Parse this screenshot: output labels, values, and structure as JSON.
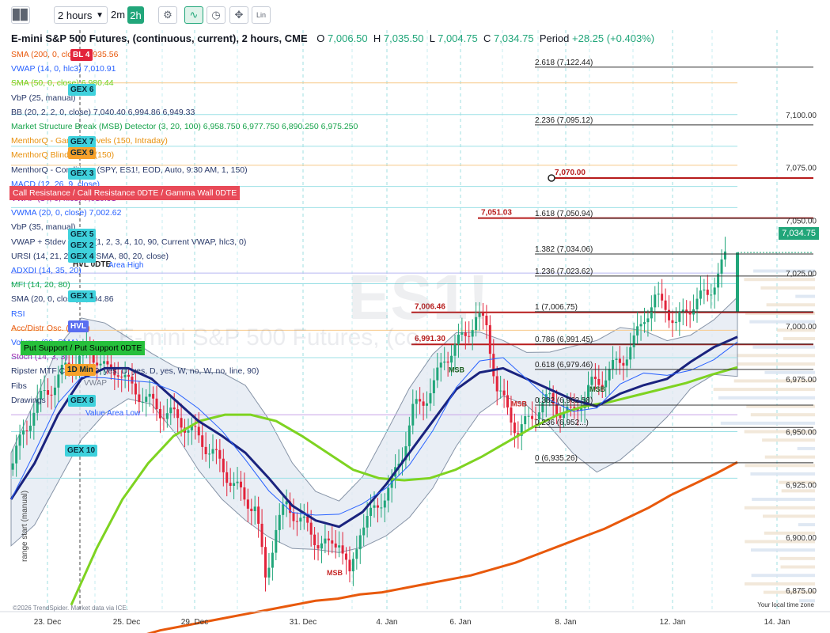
{
  "toolbar": {
    "interval": "2 hours",
    "btn_2m": "2m",
    "btn_2h": "2h",
    "lin": "Lin"
  },
  "header": {
    "title": "E-mini S&P 500 Futures, (continuous, current), 2 hours, CME",
    "o_label": "O",
    "o": "7,006.50",
    "h_label": "H",
    "h": "7,035.50",
    "l_label": "L",
    "l": "7,004.75",
    "c_label": "C",
    "c": "7,034.75",
    "period_label": "Period",
    "period": "+28.25 (+0.403%)"
  },
  "indicators": [
    {
      "text": "SMA (200, 0, close)  6,935.56",
      "color": "#e8590c"
    },
    {
      "text": "VWAP (14, 0, hlc3)  7,010.91",
      "color": "#2962ff"
    },
    {
      "text": "SMA (50, 0, close)  6,980.44",
      "color": "#6cd31d"
    },
    {
      "text": "VbP (25, manual)",
      "color": "#2a3a6a"
    },
    {
      "text": "BB (20, 2, 2, 0, close)  7,040.40  6,994.86  6,949.33",
      "color": "#2a3a6a"
    },
    {
      "text": "Market Structure Break (MSB) Detector (3, 20, 100)  6,958.750  6,977.750  6,890.250  6,975.250",
      "color": "#16a34a"
    },
    {
      "text": "MenthorQ - Gamma Levels (150, Intraday)",
      "color": "#e8900c"
    },
    {
      "text": "MenthorQ Blind Spots (150)",
      "color": "#e8900c"
    },
    {
      "text": "MenthorQ - Conditions (SPY, ES1!, EOD, Auto, 9:30 AM, 1, 150)",
      "color": "#2a3a6a"
    },
    {
      "text": "MACD (12, 26, 9, close)",
      "color": "#2962ff"
    },
    {
      "text": "VWAP (14, 0, hlc3)  7,010.91",
      "color": "#9c27b0"
    },
    {
      "text": "VWMA (20, 0, close)  7,002.62",
      "color": "#2962ff"
    },
    {
      "text": "VbP (35, manual)",
      "color": "#2a3a6a"
    },
    {
      "text": "VWAP + Stdev Bands (1, 2, 3, 4, 10, 90, Current VWAP, hlc3, 0)",
      "color": "#2a3a6a"
    },
    {
      "text": "URSI (14, 21, 20, 2, 2, SMA, 80, 20, close)",
      "color": "#2a3a6a"
    },
    {
      "text": "ADXDI (14, 35, 20)",
      "color": "#2962ff"
    },
    {
      "text": "MFI (14, 20, 80)",
      "color": "#16a34a"
    },
    {
      "text": "SMA (20, 0, close)  6,994.86",
      "color": "#2a3a6a"
    },
    {
      "text": "RSI",
      "color": "#2962ff"
    },
    {
      "text": "Acc/Distr Osc. (6, 10)",
      "color": "#e8590c"
    },
    {
      "text": "Volume (20, SMA)",
      "color": "#2962ff"
    },
    {
      "text": "Stoch (14, 3, 3)",
      "color": "#9c27b0"
    },
    {
      "text": "Ripster MTF Clouds (80, yes, D, yes, D, yes, W, no, W, no, line, 90)",
      "color": "#2a3a6a"
    },
    {
      "text": "Fibs",
      "color": "#2a3a6a"
    },
    {
      "text": "Drawings",
      "color": "#2a3a6a"
    }
  ],
  "gex_labels": [
    {
      "text": "BL 4",
      "kind": "red"
    },
    {
      "text": "GEX 6",
      "kind": "cyan"
    },
    {
      "text": "GEX 7",
      "kind": "cyan"
    },
    {
      "text": "GEX 9",
      "kind": "orange"
    },
    {
      "text": "GEX 3",
      "kind": "cyan"
    },
    {
      "text": "GEX 5",
      "kind": "cyan"
    },
    {
      "text": "GEX 2",
      "kind": "cyan"
    },
    {
      "text": "GEX 4",
      "kind": "cyan"
    },
    {
      "text": "GEX 1",
      "kind": "cyan"
    },
    {
      "text": "HVL",
      "kind": "blue"
    },
    {
      "text": "1D Min",
      "kind": "orange"
    },
    {
      "text": "GEX 8",
      "kind": "cyan"
    },
    {
      "text": "GEX 10",
      "kind": "cyan"
    }
  ],
  "banners": {
    "call_resistance": "Call Resistance / Call Resistance 0DTE / Gamma Wall 0DTE",
    "put_support": "Put Support / Put Support 0DTE",
    "hvl_0dte": "HVL 0DTE",
    "value_area_high": "Area High",
    "value_area_low": "Value Area Low",
    "vwap_small": "VWAP",
    "range_start": "range start (manual)"
  },
  "watermark": {
    "symbol": "ES1!",
    "name": "E-mini S&P 500 Futures, (co"
  },
  "footer": {
    "copyright": "©2026 TrendSpider. Market data via ICE.",
    "local_time": "Your local time zone"
  },
  "current_price": "7,034.75",
  "colors": {
    "up": "#21a67a",
    "down": "#e2243b",
    "sma200": "#e8590c",
    "sma50": "#7ed321",
    "sma20": "#1a237e",
    "vwap": "#2962ff",
    "bb": "#5a6b85",
    "fib": "#333333",
    "level_red": "#b71c1c"
  },
  "chart_data": {
    "type": "candlestick",
    "title": "E-mini S&P 500 Futures, (continuous, current), 2 hours, CME",
    "x_ticks": [
      "23. Dec",
      "25. Dec",
      "29. Dec",
      "31. Dec",
      "4. Jan",
      "6. Jan",
      "8. Jan",
      "12. Jan",
      "14. Jan"
    ],
    "y_ticks": [
      "7,100.00",
      "7,075.00",
      "7,050.00",
      "7,025.00",
      "7,000.00",
      "6,975.00",
      "6,950.00",
      "6,925.00",
      "6,900.00",
      "6,875.00"
    ],
    "y_range": [
      6860,
      7128
    ],
    "fib_levels": [
      {
        "label": "2.618 (7,122.44)",
        "value": 7122.44
      },
      {
        "label": "2.236 (7,095.12)",
        "value": 7095.12
      },
      {
        "label": "1.618 (7,050.94)",
        "value": 7050.94
      },
      {
        "label": "1.382 (7,034.06)",
        "value": 7034.06
      },
      {
        "label": "1.236 (7,023.62)",
        "value": 7023.62
      },
      {
        "label": "1 (7,006.75)",
        "value": 7006.75
      },
      {
        "label": "0.786 (6,991.45)",
        "value": 6991.45
      },
      {
        "label": "0.618 (6,979.46)",
        "value": 6979.46
      },
      {
        "label": "0.382 (6,962.58)",
        "value": 6962.58
      },
      {
        "label": "0.236 (6,952...)",
        "value": 6952.0
      },
      {
        "label": "0 (6,935.26)",
        "value": 6935.26
      }
    ],
    "key_levels": [
      {
        "label": "7,070.00",
        "value": 7070.0
      },
      {
        "label": "7,051.03",
        "value": 7051.03
      },
      {
        "label": "7,006.46",
        "value": 7006.46
      },
      {
        "label": "6,991.30",
        "value": 6991.3
      }
    ],
    "msb_labels": [
      {
        "text": "MSB",
        "x": "1 Jan",
        "value": 6882
      },
      {
        "text": "MSB",
        "x": "5 Jan",
        "value": 6962
      },
      {
        "text": "MSB",
        "x": "7 Jan",
        "value": 6969
      },
      {
        "text": "MSB",
        "x": "8 Jan",
        "value": 6978
      }
    ],
    "close_path": [
      6935,
      6950,
      6960,
      6968,
      6973,
      6980,
      6984,
      6988,
      6985,
      6978,
      6980,
      6972,
      6968,
      6964,
      6960,
      6958,
      6955,
      6950,
      6945,
      6940,
      6932,
      6925,
      6918,
      6915,
      6880,
      6905,
      6915,
      6910,
      6904,
      6898,
      6895,
      6900,
      6880,
      6905,
      6910,
      6918,
      6925,
      6940,
      6960,
      6965,
      6972,
      6985,
      6990,
      6996,
      7004,
      7000,
      6970,
      6960,
      6950,
      6955,
      6962,
      6965,
      6960,
      6958,
      6965,
      6972,
      6975,
      6980,
      6985,
      6992,
      7005,
      7012,
      7010,
      7000,
      7008,
      7012,
      7015,
      7025,
      7034.75
    ],
    "sma200_path": [
      6842,
      6846,
      6850,
      6853,
      6856,
      6858,
      6860,
      6862,
      6864,
      6866,
      6868,
      6870,
      6871,
      6873,
      6874,
      6876,
      6878,
      6880,
      6882,
      6885,
      6888,
      6892,
      6896,
      6900,
      6904,
      6909,
      6914,
      6920,
      6925,
      6930,
      6935.56
    ],
    "sma50_path": [
      6868,
      6895,
      6918,
      6935,
      6948,
      6955,
      6958,
      6958,
      6955,
      6948,
      6940,
      6932,
      6928,
      6927,
      6928,
      6932,
      6938,
      6945,
      6952,
      6958,
      6962,
      6964,
      6967,
      6970,
      6973,
      6977,
      6980.44
    ],
    "sma20_path": [
      6918,
      6935,
      6958,
      6975,
      6980,
      6980,
      6975,
      6965,
      6955,
      6948,
      6940,
      6928,
      6915,
      6908,
      6905,
      6912,
      6925,
      6940,
      6955,
      6970,
      6978,
      6980,
      6975,
      6970,
      6965,
      6962,
      6968,
      6972,
      6975,
      6983,
      6990,
      6994.86
    ]
  }
}
